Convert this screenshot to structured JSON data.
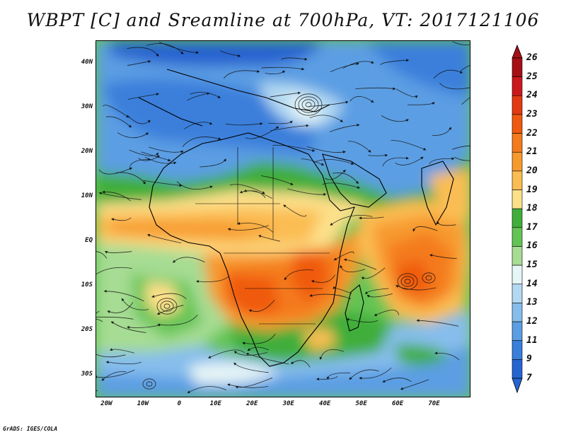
{
  "title": "WBPT [C] and Sreamline at 700hPa, VT: 2017121106",
  "footer": "GrADS: IGES/COLA",
  "map": {
    "lon_range": [
      -23,
      80
    ],
    "lat_range": [
      -35,
      45
    ],
    "lat_ticks": [
      {
        "value": 40,
        "label": "40N"
      },
      {
        "value": 30,
        "label": "30N"
      },
      {
        "value": 20,
        "label": "20N"
      },
      {
        "value": 10,
        "label": "10N"
      },
      {
        "value": 0,
        "label": "EQ"
      },
      {
        "value": -10,
        "label": "10S"
      },
      {
        "value": -20,
        "label": "20S"
      },
      {
        "value": -30,
        "label": "30S"
      }
    ],
    "lon_ticks": [
      {
        "value": -20,
        "label": "20W"
      },
      {
        "value": -10,
        "label": "10W"
      },
      {
        "value": 0,
        "label": "0"
      },
      {
        "value": 10,
        "label": "10E"
      },
      {
        "value": 20,
        "label": "20E"
      },
      {
        "value": 30,
        "label": "30E"
      },
      {
        "value": 40,
        "label": "40E"
      },
      {
        "value": 50,
        "label": "50E"
      },
      {
        "value": 60,
        "label": "60E"
      },
      {
        "value": 70,
        "label": "70E"
      }
    ]
  },
  "colorbar": {
    "labels": [
      "26",
      "25",
      "24",
      "23",
      "22",
      "21",
      "20",
      "19",
      "18",
      "17",
      "16",
      "15",
      "14",
      "13",
      "12",
      "11",
      "9",
      "7"
    ],
    "colors": [
      "#a50f15",
      "#cb181d",
      "#e33a14",
      "#f05a10",
      "#f47a1e",
      "#f79a2e",
      "#fbbd52",
      "#fde08a",
      "#3fae3a",
      "#63c454",
      "#a6dc93",
      "#e6f5f6",
      "#b3d9f2",
      "#86bdec",
      "#5b9ee3",
      "#3a7fdb",
      "#2664d0"
    ],
    "top_color": "#a50f15",
    "bottom_color": "#2664d0"
  }
}
